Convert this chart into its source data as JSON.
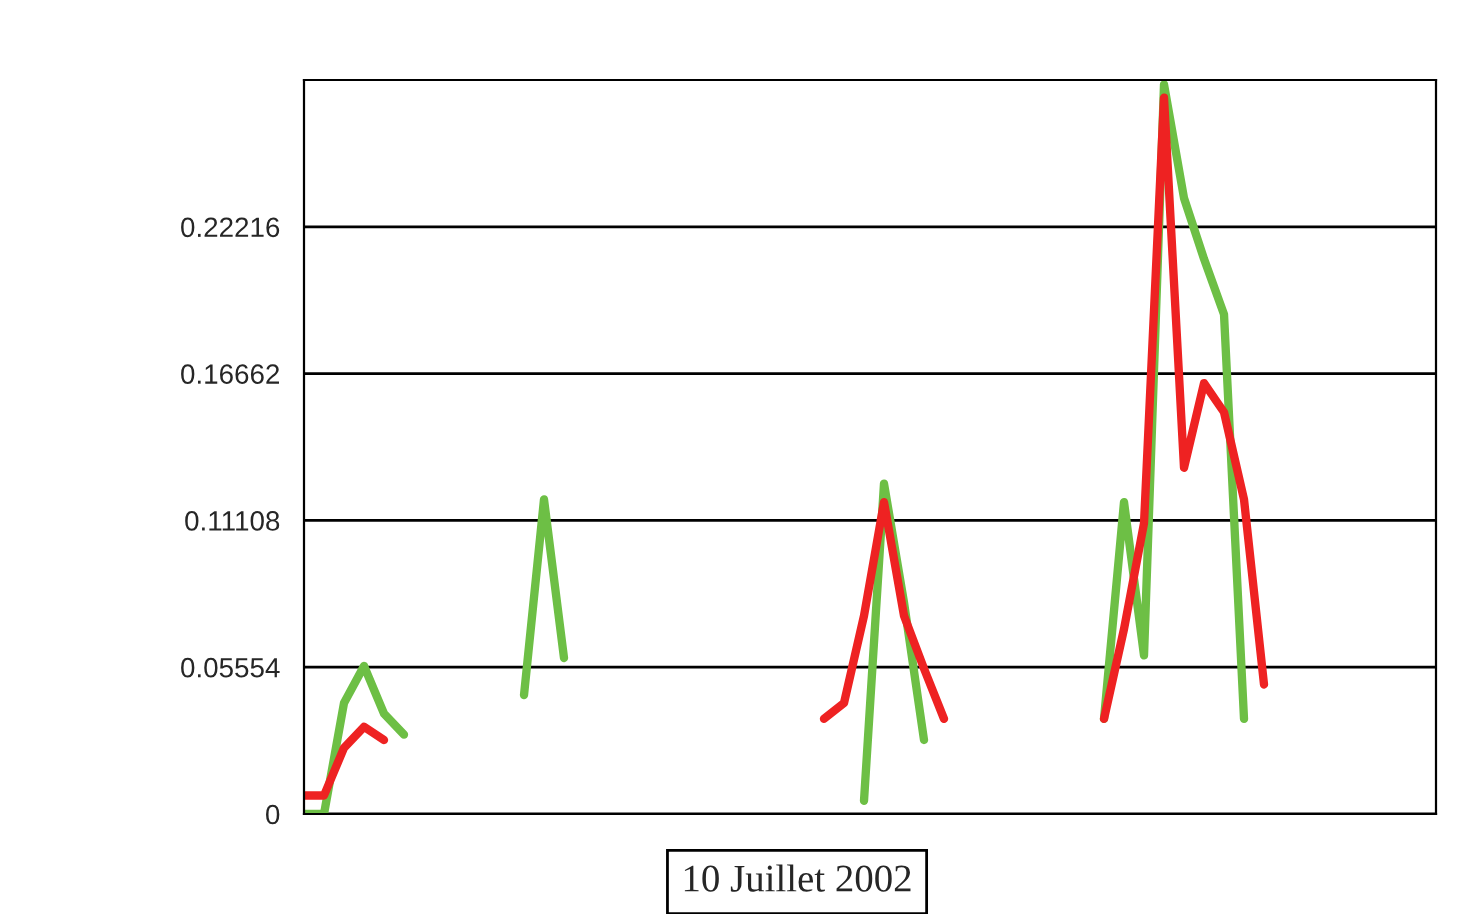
{
  "chart_data": {
    "type": "line",
    "categories": [
      null,
      null,
      null,
      null,
      null,
      null,
      null,
      null,
      null,
      null,
      null,
      null,
      null,
      null,
      null,
      null,
      null,
      null,
      null,
      null,
      null,
      null,
      null,
      null,
      null,
      null,
      null,
      null,
      null,
      null,
      null,
      null,
      null,
      null,
      null,
      null,
      null,
      null,
      null,
      null,
      null,
      null,
      null,
      null,
      null,
      null,
      null,
      null,
      null,
      null,
      null,
      null,
      null,
      null,
      null,
      null,
      null
    ],
    "series": [
      {
        "color": "#6dbf45",
        "values": [
          0,
          0,
          0.042,
          0.056,
          0.038,
          0.03,
          null,
          null,
          null,
          null,
          null,
          0.045,
          0.119,
          0.059,
          null,
          null,
          null,
          null,
          null,
          null,
          null,
          null,
          null,
          null,
          null,
          null,
          null,
          null,
          0.005,
          0.125,
          0.08,
          0.028,
          null,
          null,
          null,
          null,
          null,
          null,
          null,
          null,
          0.036,
          0.118,
          0.06,
          0.276,
          0.233,
          0.21,
          0.189,
          0.036,
          null,
          null,
          null,
          null,
          null,
          null,
          null,
          null,
          null
        ]
      },
      {
        "color": "#ee2222",
        "values": [
          0.007,
          0.007,
          0.025,
          0.033,
          0.028,
          null,
          null,
          null,
          null,
          null,
          null,
          null,
          null,
          null,
          null,
          null,
          null,
          null,
          null,
          null,
          null,
          null,
          null,
          null,
          null,
          null,
          0.036,
          0.042,
          0.075,
          0.118,
          0.075,
          0.055,
          0.036,
          null,
          null,
          null,
          null,
          null,
          null,
          null,
          0.036,
          0.07,
          0.11,
          0.271,
          0.131,
          0.163,
          0.152,
          0.119,
          0.049,
          null,
          null,
          null,
          null,
          null,
          null,
          null,
          null
        ]
      }
    ],
    "ylim": [
      0,
      0.2777
    ],
    "yticks": [
      0,
      {
        "value": 0.05554,
        "label": "0.05554"
      },
      {
        "value": 0.11108,
        "label": "0.11108"
      },
      {
        "value": 0.16662,
        "label": "0.16662"
      },
      0.22216
    ],
    "grid": "y",
    "line_style": "solid",
    "annotations": [
      "10 Juillet 2002"
    ]
  }
}
